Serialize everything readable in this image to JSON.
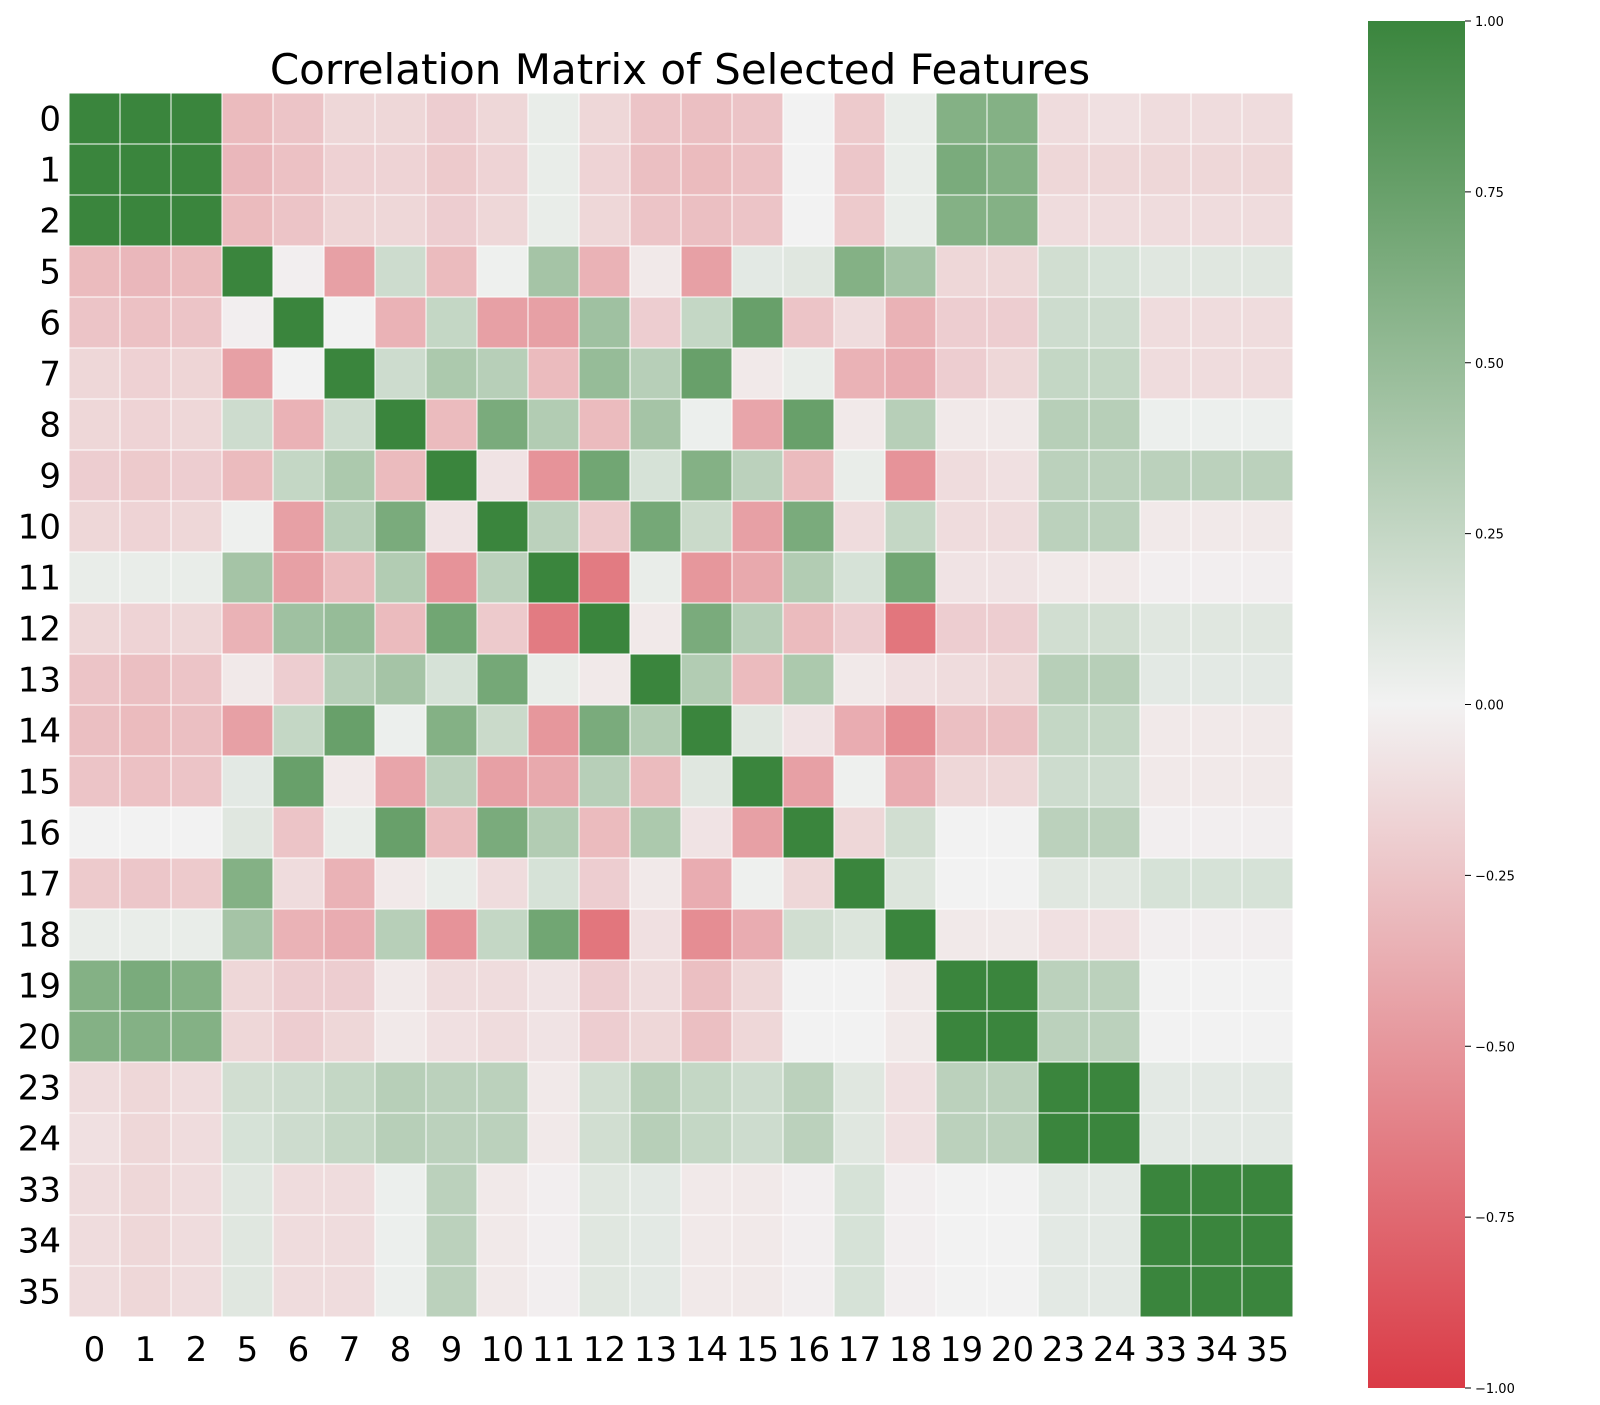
{
  "chart_data": {
    "type": "heatmap",
    "title": "Correlation Matrix of Selected Features",
    "xlabel": "",
    "ylabel": "",
    "labels": [
      "0",
      "1",
      "2",
      "5",
      "6",
      "7",
      "8",
      "9",
      "10",
      "11",
      "12",
      "13",
      "14",
      "15",
      "16",
      "17",
      "18",
      "19",
      "20",
      "23",
      "24",
      "33",
      "34",
      "35"
    ],
    "matrix": [
      [
        1.0,
        1.0,
        1.0,
        -0.3,
        -0.25,
        -0.15,
        -0.15,
        -0.2,
        -0.15,
        0.05,
        -0.15,
        -0.25,
        -0.28,
        -0.25,
        0.0,
        -0.22,
        0.05,
        0.6,
        0.6,
        -0.12,
        -0.1,
        -0.12,
        -0.12,
        -0.12
      ],
      [
        1.0,
        1.0,
        1.0,
        -0.32,
        -0.27,
        -0.18,
        -0.17,
        -0.22,
        -0.17,
        0.05,
        -0.17,
        -0.28,
        -0.3,
        -0.27,
        0.0,
        -0.24,
        0.05,
        0.65,
        0.6,
        -0.15,
        -0.15,
        -0.15,
        -0.15,
        -0.15
      ],
      [
        1.0,
        1.0,
        1.0,
        -0.3,
        -0.25,
        -0.16,
        -0.15,
        -0.2,
        -0.15,
        0.05,
        -0.15,
        -0.25,
        -0.28,
        -0.25,
        0.0,
        -0.22,
        0.05,
        0.6,
        0.6,
        -0.12,
        -0.12,
        -0.12,
        -0.12,
        -0.12
      ],
      [
        -0.3,
        -0.32,
        -0.3,
        1.0,
        -0.02,
        -0.45,
        0.2,
        -0.3,
        0.02,
        0.42,
        -0.35,
        -0.05,
        -0.45,
        0.08,
        0.1,
        0.6,
        0.42,
        -0.15,
        -0.15,
        0.18,
        0.15,
        0.1,
        0.1,
        0.1
      ],
      [
        -0.25,
        -0.27,
        -0.25,
        -0.02,
        1.0,
        0.0,
        -0.35,
        0.25,
        -0.45,
        -0.45,
        0.45,
        -0.2,
        0.25,
        0.75,
        -0.25,
        -0.12,
        -0.35,
        -0.2,
        -0.2,
        0.2,
        0.2,
        -0.12,
        -0.12,
        -0.12
      ],
      [
        -0.15,
        -0.18,
        -0.16,
        -0.45,
        0.0,
        1.0,
        0.2,
        0.38,
        0.32,
        -0.3,
        0.5,
        0.32,
        0.75,
        -0.05,
        0.05,
        -0.35,
        -0.38,
        -0.2,
        -0.15,
        0.25,
        0.25,
        -0.12,
        -0.12,
        -0.12
      ],
      [
        -0.15,
        -0.17,
        -0.15,
        0.2,
        -0.35,
        0.2,
        1.0,
        -0.3,
        0.65,
        0.35,
        -0.3,
        0.42,
        0.03,
        -0.42,
        0.75,
        -0.05,
        0.32,
        -0.05,
        -0.05,
        0.32,
        0.32,
        0.03,
        0.03,
        0.03
      ],
      [
        -0.2,
        -0.22,
        -0.2,
        -0.3,
        0.25,
        0.38,
        -0.3,
        1.0,
        -0.08,
        -0.52,
        0.7,
        0.15,
        0.6,
        0.3,
        -0.3,
        0.05,
        -0.52,
        -0.12,
        -0.1,
        0.3,
        0.3,
        0.3,
        0.3,
        0.3
      ],
      [
        -0.15,
        -0.17,
        -0.15,
        0.02,
        -0.45,
        0.32,
        0.65,
        -0.08,
        1.0,
        0.3,
        -0.22,
        0.68,
        0.22,
        -0.45,
        0.65,
        -0.12,
        0.25,
        -0.12,
        -0.12,
        0.3,
        0.3,
        -0.05,
        -0.05,
        -0.05
      ],
      [
        0.05,
        0.05,
        0.05,
        0.42,
        -0.45,
        -0.3,
        0.35,
        -0.52,
        0.3,
        1.0,
        -0.65,
        0.05,
        -0.5,
        -0.4,
        0.35,
        0.15,
        0.7,
        -0.08,
        -0.08,
        -0.05,
        -0.05,
        -0.02,
        -0.02,
        -0.02
      ],
      [
        -0.15,
        -0.17,
        -0.15,
        -0.35,
        0.45,
        0.5,
        -0.3,
        0.7,
        -0.22,
        -0.65,
        1.0,
        -0.05,
        0.65,
        0.32,
        -0.3,
        -0.2,
        -0.68,
        -0.2,
        -0.2,
        0.18,
        0.18,
        0.1,
        0.1,
        0.1
      ],
      [
        -0.25,
        -0.28,
        -0.25,
        -0.05,
        -0.2,
        0.32,
        0.42,
        0.15,
        0.68,
        0.05,
        -0.05,
        1.0,
        0.35,
        -0.3,
        0.38,
        -0.05,
        -0.1,
        -0.12,
        -0.15,
        0.32,
        0.32,
        0.08,
        0.08,
        0.08
      ],
      [
        -0.28,
        -0.3,
        -0.28,
        -0.45,
        0.25,
        0.75,
        0.03,
        0.6,
        0.22,
        -0.5,
        0.65,
        0.35,
        1.0,
        0.1,
        -0.08,
        -0.38,
        -0.55,
        -0.28,
        -0.28,
        0.25,
        0.25,
        -0.05,
        -0.05,
        -0.05
      ],
      [
        -0.25,
        -0.27,
        -0.25,
        0.08,
        0.75,
        -0.05,
        -0.42,
        0.3,
        -0.45,
        -0.4,
        0.32,
        -0.3,
        0.1,
        1.0,
        -0.45,
        0.02,
        -0.38,
        -0.15,
        -0.15,
        0.2,
        0.2,
        -0.05,
        -0.05,
        -0.05
      ],
      [
        0.0,
        0.0,
        0.0,
        0.1,
        -0.25,
        0.05,
        0.75,
        -0.3,
        0.65,
        0.35,
        -0.3,
        0.38,
        -0.08,
        -0.45,
        1.0,
        -0.15,
        0.18,
        0.0,
        0.0,
        0.3,
        0.3,
        -0.02,
        -0.02,
        -0.02
      ],
      [
        -0.22,
        -0.24,
        -0.22,
        0.6,
        -0.12,
        -0.35,
        -0.05,
        0.05,
        -0.12,
        0.15,
        -0.2,
        -0.05,
        -0.38,
        0.02,
        -0.15,
        1.0,
        0.12,
        0.0,
        0.0,
        0.1,
        0.1,
        0.15,
        0.15,
        0.15
      ],
      [
        0.05,
        0.05,
        0.05,
        0.42,
        -0.35,
        -0.38,
        0.32,
        -0.52,
        0.25,
        0.7,
        -0.68,
        -0.1,
        -0.55,
        -0.38,
        0.18,
        0.12,
        1.0,
        -0.05,
        -0.05,
        -0.1,
        -0.1,
        -0.02,
        -0.02,
        -0.02
      ],
      [
        0.6,
        0.65,
        0.6,
        -0.15,
        -0.2,
        -0.2,
        -0.05,
        -0.12,
        -0.12,
        -0.08,
        -0.2,
        -0.12,
        -0.28,
        -0.15,
        0.0,
        0.0,
        -0.05,
        1.0,
        1.0,
        0.3,
        0.3,
        0.0,
        0.0,
        0.0
      ],
      [
        0.6,
        0.6,
        0.6,
        -0.15,
        -0.2,
        -0.15,
        -0.05,
        -0.1,
        -0.12,
        -0.08,
        -0.2,
        -0.15,
        -0.28,
        -0.15,
        0.0,
        0.0,
        -0.05,
        1.0,
        1.0,
        0.3,
        0.3,
        0.0,
        0.0,
        0.0
      ],
      [
        -0.12,
        -0.15,
        -0.12,
        0.18,
        0.2,
        0.25,
        0.32,
        0.3,
        0.3,
        -0.05,
        0.18,
        0.32,
        0.25,
        0.2,
        0.3,
        0.1,
        -0.1,
        0.3,
        0.3,
        1.0,
        1.0,
        0.08,
        0.08,
        0.08
      ],
      [
        -0.1,
        -0.15,
        -0.12,
        0.15,
        0.2,
        0.25,
        0.32,
        0.3,
        0.3,
        -0.05,
        0.18,
        0.32,
        0.25,
        0.2,
        0.3,
        0.1,
        -0.1,
        0.3,
        0.3,
        1.0,
        1.0,
        0.08,
        0.08,
        0.08
      ],
      [
        -0.12,
        -0.15,
        -0.12,
        0.1,
        -0.12,
        -0.12,
        0.03,
        0.3,
        -0.05,
        -0.02,
        0.1,
        0.08,
        -0.05,
        -0.05,
        -0.02,
        0.15,
        -0.02,
        0.0,
        0.0,
        0.08,
        0.08,
        1.0,
        1.0,
        1.0
      ],
      [
        -0.12,
        -0.15,
        -0.12,
        0.1,
        -0.12,
        -0.12,
        0.03,
        0.3,
        -0.05,
        -0.02,
        0.1,
        0.08,
        -0.05,
        -0.05,
        -0.02,
        0.15,
        -0.02,
        0.0,
        0.0,
        0.08,
        0.08,
        1.0,
        1.0,
        1.0
      ],
      [
        -0.12,
        -0.15,
        -0.12,
        0.1,
        -0.12,
        -0.12,
        0.03,
        0.3,
        -0.05,
        -0.02,
        0.1,
        0.08,
        -0.05,
        -0.05,
        -0.02,
        0.15,
        -0.02,
        0.0,
        0.0,
        0.08,
        0.08,
        1.0,
        1.0,
        1.0
      ]
    ],
    "vmin": -1.0,
    "vmax": 1.0,
    "colormap": {
      "low": "#da3b46",
      "mid": "#f2f2f2",
      "high": "#3a853d"
    },
    "colorbar_ticks": [
      "1.00",
      "0.75",
      "0.50",
      "0.25",
      "0.00",
      "−0.25",
      "−0.50",
      "−0.75",
      "−1.00"
    ],
    "colorbar_tick_values": [
      1.0,
      0.75,
      0.5,
      0.25,
      0.0,
      -0.25,
      -0.5,
      -0.75,
      -1.0
    ],
    "grid": true,
    "legend": "colorbar-right"
  }
}
